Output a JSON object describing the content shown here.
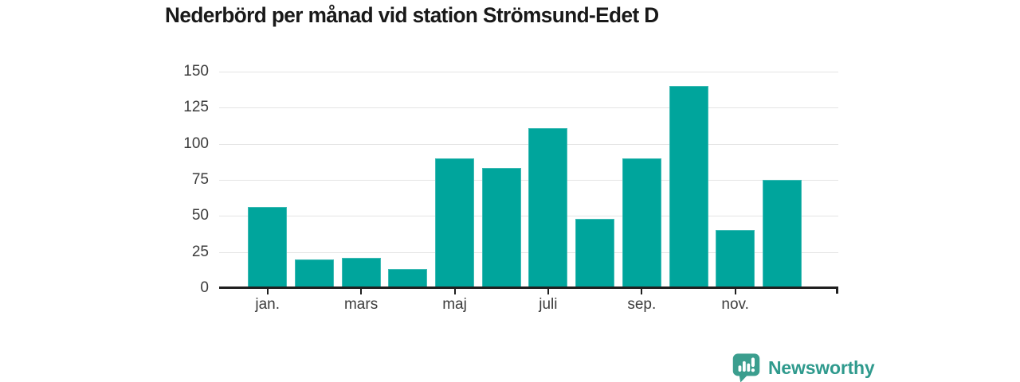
{
  "title": "Nederbörd per månad vid station Strömsund-Edet D",
  "chart_data": {
    "type": "bar",
    "title": "Nederbörd per månad vid station Strömsund-Edet D",
    "categories": [
      "jan.",
      "",
      "mars",
      "",
      "maj",
      "",
      "juli",
      "",
      "sep.",
      "",
      "nov.",
      ""
    ],
    "values": [
      56,
      20,
      21,
      13,
      90,
      83,
      111,
      48,
      90,
      140,
      40,
      75
    ],
    "x_tick_labels": [
      "jan.",
      "mars",
      "maj",
      "juli",
      "sep.",
      "nov."
    ],
    "x_tick_indices": [
      0,
      2,
      4,
      6,
      8,
      10
    ],
    "y_ticks": [
      0,
      25,
      50,
      75,
      100,
      125,
      150
    ],
    "ylim": [
      0,
      150
    ],
    "xlabel": "",
    "ylabel": "",
    "grid": true,
    "legend_position": "none",
    "bar_color": "#00a59c"
  },
  "footer": {
    "logo_text": "Newsworthy"
  },
  "colors": {
    "accent": "#00a59c",
    "logo": "#2f9a8d",
    "logo_icon": "#3b9e8e",
    "title_text": "#191919",
    "axis_text": "#3c3c3c",
    "gridline": "#e4e4e4",
    "axis_line": "#1f1f1f"
  }
}
